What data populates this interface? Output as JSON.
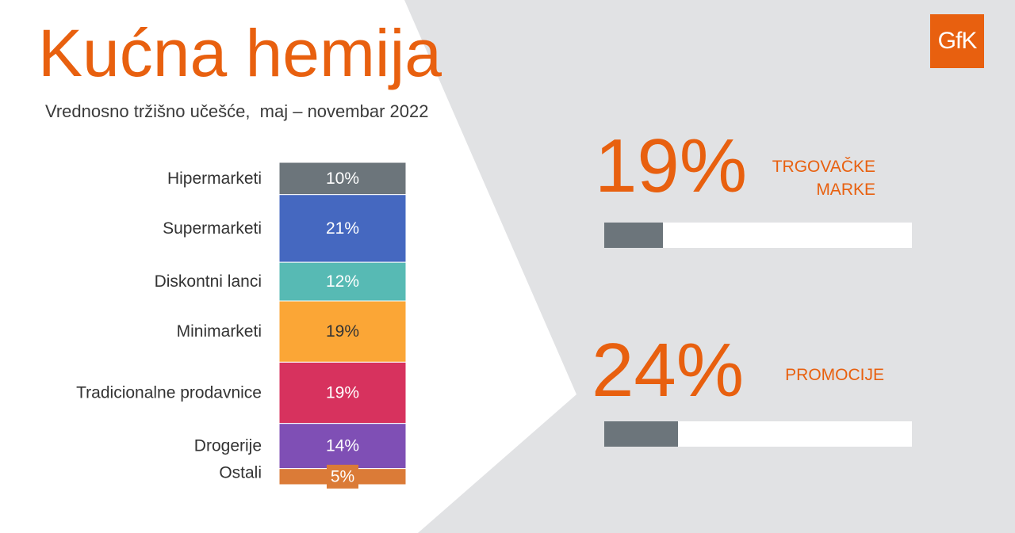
{
  "header": {
    "title": "Kućna hemija",
    "subtitle": "Vrednosno tržišno učešće,  maj – novembar 2022"
  },
  "logo": {
    "text": "GfK",
    "color": "#e8600f"
  },
  "kpis": [
    {
      "value": "19%",
      "label_lines": [
        "TRGOVAČKE",
        "MARKE"
      ],
      "fraction": 0.19
    },
    {
      "value": "24%",
      "label_lines": [
        "PROMOCIJE"
      ],
      "fraction": 0.24
    }
  ],
  "colors": {
    "accent": "#e8600f",
    "panel": "#e1e2e4",
    "progress_fill": "#6c757b"
  },
  "chart_data": {
    "type": "bar",
    "stacked": true,
    "orientation": "vertical-stack",
    "categories": [
      "Hipermarketi",
      "Supermarketi",
      "Diskontni lanci",
      "Minimarketi",
      "Tradicionalne prodavnice",
      "Drogerije",
      "Ostali"
    ],
    "values": [
      10,
      21,
      12,
      19,
      19,
      14,
      5
    ],
    "data_labels": [
      "10%",
      "21%",
      "12%",
      "19%",
      "19%",
      "14%",
      "5%"
    ],
    "colors": [
      "#6c757b",
      "#4568c0",
      "#57bab4",
      "#fba636",
      "#d7325e",
      "#7f4fb5",
      "#db7b37"
    ],
    "label_colors": [
      "#ffffff",
      "#ffffff",
      "#ffffff",
      "#333333",
      "#ffffff",
      "#ffffff",
      "#ffffff"
    ],
    "title": "",
    "xlabel": "",
    "ylabel": "",
    "ylim": [
      0,
      100
    ],
    "legend": "none",
    "grid": false
  }
}
